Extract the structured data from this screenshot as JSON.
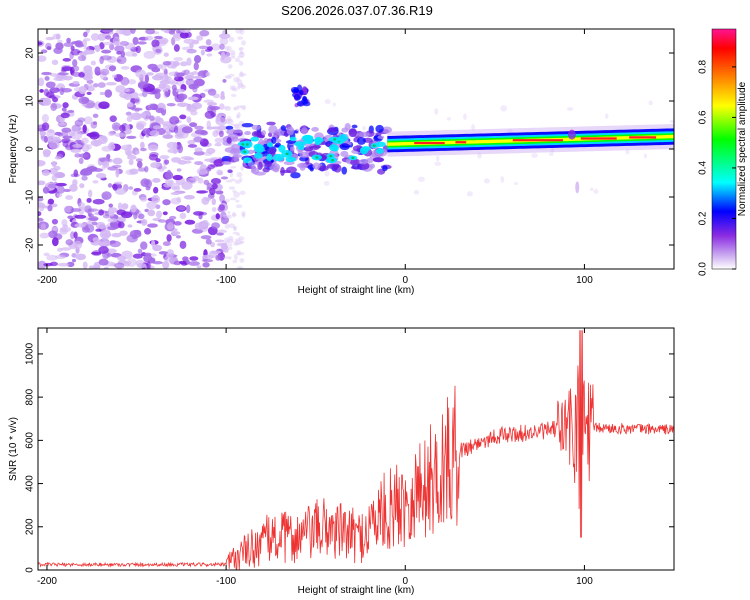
{
  "title": "S206.2026.037.07.36.R19",
  "chart_data": [
    {
      "type": "heatmap",
      "xlabel": "Height of straight line (km)",
      "ylabel": "Frequency (Hz)",
      "xlim": [
        -205,
        150
      ],
      "ylim": [
        -25,
        25
      ],
      "xticks": [
        -200,
        -100,
        0,
        100
      ],
      "yticks": [
        -20,
        -10,
        0,
        10,
        20
      ],
      "colorbar": {
        "label": "Normalized spectral amplitude",
        "range": [
          0,
          0.95
        ],
        "ticks": [
          0.0,
          0.2,
          0.4,
          0.6,
          0.8
        ],
        "colors": [
          "#ffffff",
          "#c9a6f0",
          "#8a2be2",
          "#0000ff",
          "#00ffff",
          "#00ff00",
          "#ffff00",
          "#ff8000",
          "#ff0000",
          "#ff1493"
        ]
      },
      "regions": [
        {
          "name": "noise",
          "x": [
            -205,
            -100
          ],
          "f": [
            -25,
            25
          ],
          "amplitude": 0.15
        },
        {
          "name": "transition",
          "x": [
            -100,
            -10
          ],
          "f": [
            -5,
            5
          ],
          "amplitude": 0.35
        },
        {
          "name": "tone-line",
          "x": [
            -10,
            150
          ],
          "f_center": [
            0.5,
            2.5
          ],
          "amplitude": 0.85
        },
        {
          "name": "tone-cluster",
          "x": [
            -62,
            -55
          ],
          "f": [
            9,
            13
          ],
          "amplitude": 0.3
        }
      ]
    },
    {
      "type": "line",
      "xlabel": "Height of straight line (km)",
      "ylabel": "SNR (10 * v/v)",
      "xlim": [
        -205,
        150
      ],
      "ylim": [
        0,
        1120
      ],
      "xticks": [
        -200,
        -100,
        0,
        100
      ],
      "yticks": [
        0,
        200,
        400,
        600,
        800,
        1000
      ],
      "color": "#ee3333",
      "baseline_points": [
        {
          "x": -205,
          "y": 25
        },
        {
          "x": -100,
          "y": 25
        },
        {
          "x": -90,
          "y": 80
        },
        {
          "x": -75,
          "y": 150
        },
        {
          "x": -60,
          "y": 150
        },
        {
          "x": -45,
          "y": 200
        },
        {
          "x": -25,
          "y": 150
        },
        {
          "x": -15,
          "y": 250
        },
        {
          "x": 0,
          "y": 320
        },
        {
          "x": 15,
          "y": 420
        },
        {
          "x": 30,
          "y": 550
        },
        {
          "x": 50,
          "y": 620
        },
        {
          "x": 75,
          "y": 640
        },
        {
          "x": 90,
          "y": 660
        },
        {
          "x": 150,
          "y": 650
        }
      ],
      "peak": {
        "x": 98,
        "max": 1110,
        "min": 150
      }
    }
  ]
}
